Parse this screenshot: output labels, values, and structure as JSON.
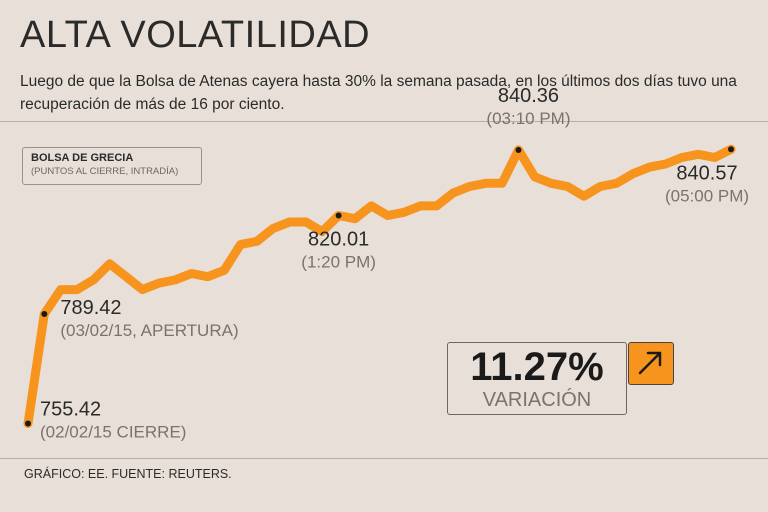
{
  "header": {
    "title": "ALTA VOLATILIDAD",
    "subtitle": "Luego de que la Bolsa de Atenas cayera hasta 30% la semana pasada, en los últimos dos días tuvo una recuperación de más de 16 por ciento."
  },
  "legend": {
    "title": "BOLSA DE GRECIA",
    "subtitle": "(PUNTOS AL CIERRE, INTRADÍA)"
  },
  "variation": {
    "value": "11.27%",
    "label": "VARIACIÓN",
    "icon": "arrow-up-right-icon"
  },
  "footer": {
    "source": "GRÁFICO: EE. FUENTE: REUTERS."
  },
  "colors": {
    "line": "#f7941d",
    "background": "#e8e0d8",
    "text": "#2a2a2a",
    "muted": "#7a726c"
  },
  "chart_data": {
    "type": "line",
    "title": "BOLSA DE GRECIA",
    "subtitle": "(PUNTOS AL CIERRE, INTRADÍA)",
    "ylim": [
      750,
      845
    ],
    "series": [
      {
        "name": "Bolsa de Grecia",
        "values": [
          755.42,
          789.42,
          797,
          797,
          800,
          805,
          801,
          797,
          799,
          800,
          802,
          801,
          803,
          811,
          812,
          816,
          818,
          818,
          815,
          820.01,
          819,
          823,
          820,
          821,
          823,
          823,
          827,
          829,
          830,
          830,
          840.36,
          832,
          830,
          829,
          826,
          829,
          830,
          833,
          835,
          836,
          838,
          839,
          838,
          840.57
        ]
      }
    ],
    "annotations": [
      {
        "index": 0,
        "value": "755.42",
        "time": "(02/02/15 CIERRE)"
      },
      {
        "index": 1,
        "value": "789.42",
        "time": "(03/02/15, APERTURA)"
      },
      {
        "index": 19,
        "value": "820.01",
        "time": "(1:20 PM)"
      },
      {
        "index": 30,
        "value": "840.36",
        "time": "(03:10 PM)"
      },
      {
        "index": 43,
        "value": "840.57",
        "time": "(05:00 PM)"
      }
    ]
  }
}
